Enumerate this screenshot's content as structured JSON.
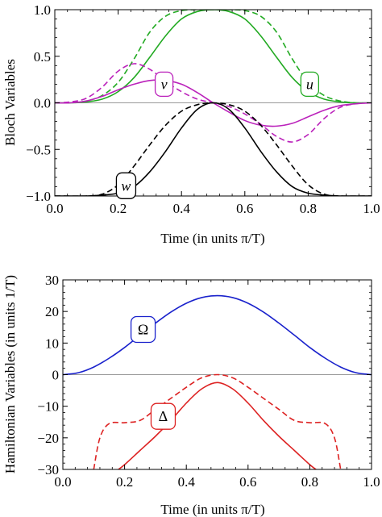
{
  "chart_data": [
    {
      "type": "line",
      "xlabel": "Time (in units π/T)",
      "ylabel": "Bloch Variables",
      "xlim": [
        0.0,
        1.0
      ],
      "ylim": [
        -1.0,
        1.0
      ],
      "xticks": [
        "0.0",
        "0.2",
        "0.4",
        "0.6",
        "0.8",
        "1.0"
      ],
      "yticks": [
        "−1.0",
        "−0.5",
        "0.0",
        "0.5",
        "1.0"
      ],
      "zero_line": true,
      "curve_labels": [
        "u",
        "v",
        "w"
      ],
      "series": [
        {
          "key": "u_solid",
          "style": "solid",
          "color": "#22aa22",
          "x": [
            0,
            0.05,
            0.1,
            0.15,
            0.2,
            0.25,
            0.3,
            0.35,
            0.4,
            0.45,
            0.5,
            0.55,
            0.6,
            0.65,
            0.7,
            0.75,
            0.8,
            0.85,
            0.9,
            0.95,
            1.0
          ],
          "y": [
            0,
            0.0,
            0.01,
            0.04,
            0.12,
            0.27,
            0.49,
            0.72,
            0.9,
            0.98,
            1.0,
            0.98,
            0.9,
            0.72,
            0.49,
            0.27,
            0.12,
            0.04,
            0.01,
            0.0,
            0
          ]
        },
        {
          "key": "u_dashed",
          "style": "dashed",
          "color": "#22aa22",
          "x": [
            0,
            0.05,
            0.1,
            0.15,
            0.2,
            0.25,
            0.3,
            0.35,
            0.4,
            0.45,
            0.5,
            0.55,
            0.6,
            0.65,
            0.7,
            0.75,
            0.8,
            0.85,
            0.9,
            0.95,
            1.0
          ],
          "y": [
            0,
            0.0,
            0.02,
            0.08,
            0.22,
            0.47,
            0.76,
            0.93,
            0.99,
            1.0,
            1.0,
            1.0,
            0.99,
            0.93,
            0.76,
            0.47,
            0.22,
            0.08,
            0.02,
            0.0,
            0
          ]
        },
        {
          "key": "v_solid",
          "style": "solid",
          "color": "#bb22bb",
          "x": [
            0,
            0.05,
            0.1,
            0.15,
            0.2,
            0.25,
            0.3,
            0.35,
            0.4,
            0.45,
            0.5,
            0.55,
            0.6,
            0.65,
            0.7,
            0.75,
            0.8,
            0.85,
            0.9,
            0.95,
            1.0
          ],
          "y": [
            0,
            0.0,
            0.02,
            0.07,
            0.14,
            0.2,
            0.24,
            0.24,
            0.2,
            0.11,
            0.0,
            -0.1,
            -0.19,
            -0.24,
            -0.25,
            -0.22,
            -0.15,
            -0.08,
            -0.03,
            -0.01,
            0
          ]
        },
        {
          "key": "v_dashed",
          "style": "dashed",
          "color": "#bb22bb",
          "x": [
            0,
            0.05,
            0.1,
            0.15,
            0.2,
            0.25,
            0.3,
            0.35,
            0.4,
            0.45,
            0.5,
            0.55,
            0.6,
            0.65,
            0.7,
            0.75,
            0.8,
            0.85,
            0.9,
            0.95,
            1.0
          ],
          "y": [
            0,
            0.01,
            0.05,
            0.17,
            0.34,
            0.42,
            0.36,
            0.23,
            0.12,
            0.04,
            0.0,
            -0.04,
            -0.12,
            -0.23,
            -0.36,
            -0.42,
            -0.34,
            -0.17,
            -0.05,
            -0.01,
            0
          ]
        },
        {
          "key": "w_solid",
          "style": "solid",
          "color": "#000000",
          "x": [
            0,
            0.1,
            0.15,
            0.2,
            0.25,
            0.3,
            0.35,
            0.4,
            0.45,
            0.5,
            0.55,
            0.6,
            0.65,
            0.7,
            0.75,
            0.8,
            0.85,
            0.9,
            1.0
          ],
          "y": [
            -1.0,
            -1.0,
            -0.99,
            -0.97,
            -0.9,
            -0.74,
            -0.52,
            -0.27,
            -0.07,
            0.0,
            -0.07,
            -0.27,
            -0.52,
            -0.74,
            -0.9,
            -0.97,
            -0.99,
            -1.0,
            -1.0
          ]
        },
        {
          "key": "w_dashed",
          "style": "dashed",
          "color": "#000000",
          "x": [
            0,
            0.1,
            0.15,
            0.2,
            0.25,
            0.3,
            0.35,
            0.4,
            0.45,
            0.5,
            0.55,
            0.6,
            0.65,
            0.7,
            0.75,
            0.8,
            0.85,
            0.9,
            1.0
          ],
          "y": [
            -1.0,
            -1.0,
            -0.98,
            -0.88,
            -0.68,
            -0.45,
            -0.24,
            -0.09,
            -0.02,
            0.0,
            -0.02,
            -0.09,
            -0.24,
            -0.45,
            -0.68,
            -0.88,
            -0.98,
            -1.0,
            -1.0
          ]
        }
      ]
    },
    {
      "type": "line",
      "xlabel": "Time (in units π/T)",
      "ylabel": "Hamiltonian Variables (in units 1/T)",
      "xlim": [
        0.0,
        1.0
      ],
      "ylim": [
        -30,
        30
      ],
      "xticks": [
        "0.0",
        "0.2",
        "0.4",
        "0.6",
        "0.8",
        "1.0"
      ],
      "yticks": [
        "−30",
        "−20",
        "−10",
        "0",
        "10",
        "20",
        "30"
      ],
      "zero_line": true,
      "curve_labels": [
        "Ω",
        "Δ"
      ],
      "series": [
        {
          "key": "omega",
          "style": "solid",
          "color": "#1a22cc",
          "x": [
            0,
            0.05,
            0.1,
            0.15,
            0.2,
            0.25,
            0.3,
            0.35,
            0.4,
            0.45,
            0.5,
            0.55,
            0.6,
            0.65,
            0.7,
            0.75,
            0.8,
            0.85,
            0.9,
            0.95,
            1.0
          ],
          "y": [
            0,
            0.6,
            2.4,
            5.2,
            8.6,
            12.5,
            16.3,
            19.8,
            22.6,
            24.4,
            25.0,
            24.4,
            22.6,
            19.8,
            16.3,
            12.5,
            8.6,
            5.2,
            2.4,
            0.6,
            0
          ]
        },
        {
          "key": "delta_solid",
          "style": "solid",
          "color": "#dd2222",
          "x": [
            0.18,
            0.2,
            0.25,
            0.3,
            0.35,
            0.4,
            0.45,
            0.5,
            0.55,
            0.6,
            0.65,
            0.7,
            0.75,
            0.8,
            0.82
          ],
          "y": [
            -30,
            -28.5,
            -24,
            -19.5,
            -14.5,
            -9,
            -4.5,
            -2.5,
            -4.5,
            -9,
            -14.5,
            -19.5,
            -24,
            -28.5,
            -30
          ]
        },
        {
          "key": "delta_dashed",
          "style": "dashed",
          "color": "#dd2222",
          "x": [
            0.1,
            0.12,
            0.15,
            0.2,
            0.25,
            0.3,
            0.35,
            0.4,
            0.45,
            0.5,
            0.55,
            0.6,
            0.65,
            0.7,
            0.75,
            0.8,
            0.85,
            0.88,
            0.9
          ],
          "y": [
            -30,
            -20,
            -15.5,
            -15.2,
            -14.5,
            -11,
            -7.5,
            -4,
            -1,
            0,
            -1,
            -4,
            -7.5,
            -11,
            -14.5,
            -15.2,
            -15.5,
            -20,
            -30
          ]
        }
      ]
    }
  ]
}
